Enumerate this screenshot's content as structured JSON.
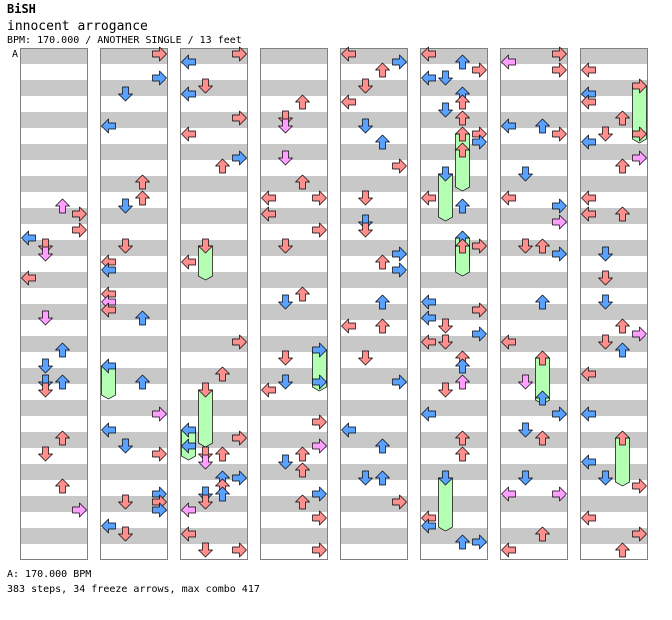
{
  "header": {
    "artist": "BiSH",
    "title": "innocent arrogance",
    "meta": "BPM: 170.000 / ANOTHER SINGLE / 13 feet"
  },
  "chart": {
    "column_count": 8,
    "measures_per_column": 8,
    "start_marker": "A",
    "lanes": [
      "left",
      "down",
      "up",
      "right"
    ],
    "colors": {
      "stripe": "#c8c8c8",
      "border": "#808080",
      "quarter": "#ff8e8e",
      "eighth": "#5aa0ff",
      "sixteenth": "#ffa0ff",
      "freeze": "#b4ffb4"
    }
  },
  "footer": {
    "bpm": "A: 170.000 BPM",
    "summary": "383 steps, 34 freeze arrows, max combo 417"
  }
}
